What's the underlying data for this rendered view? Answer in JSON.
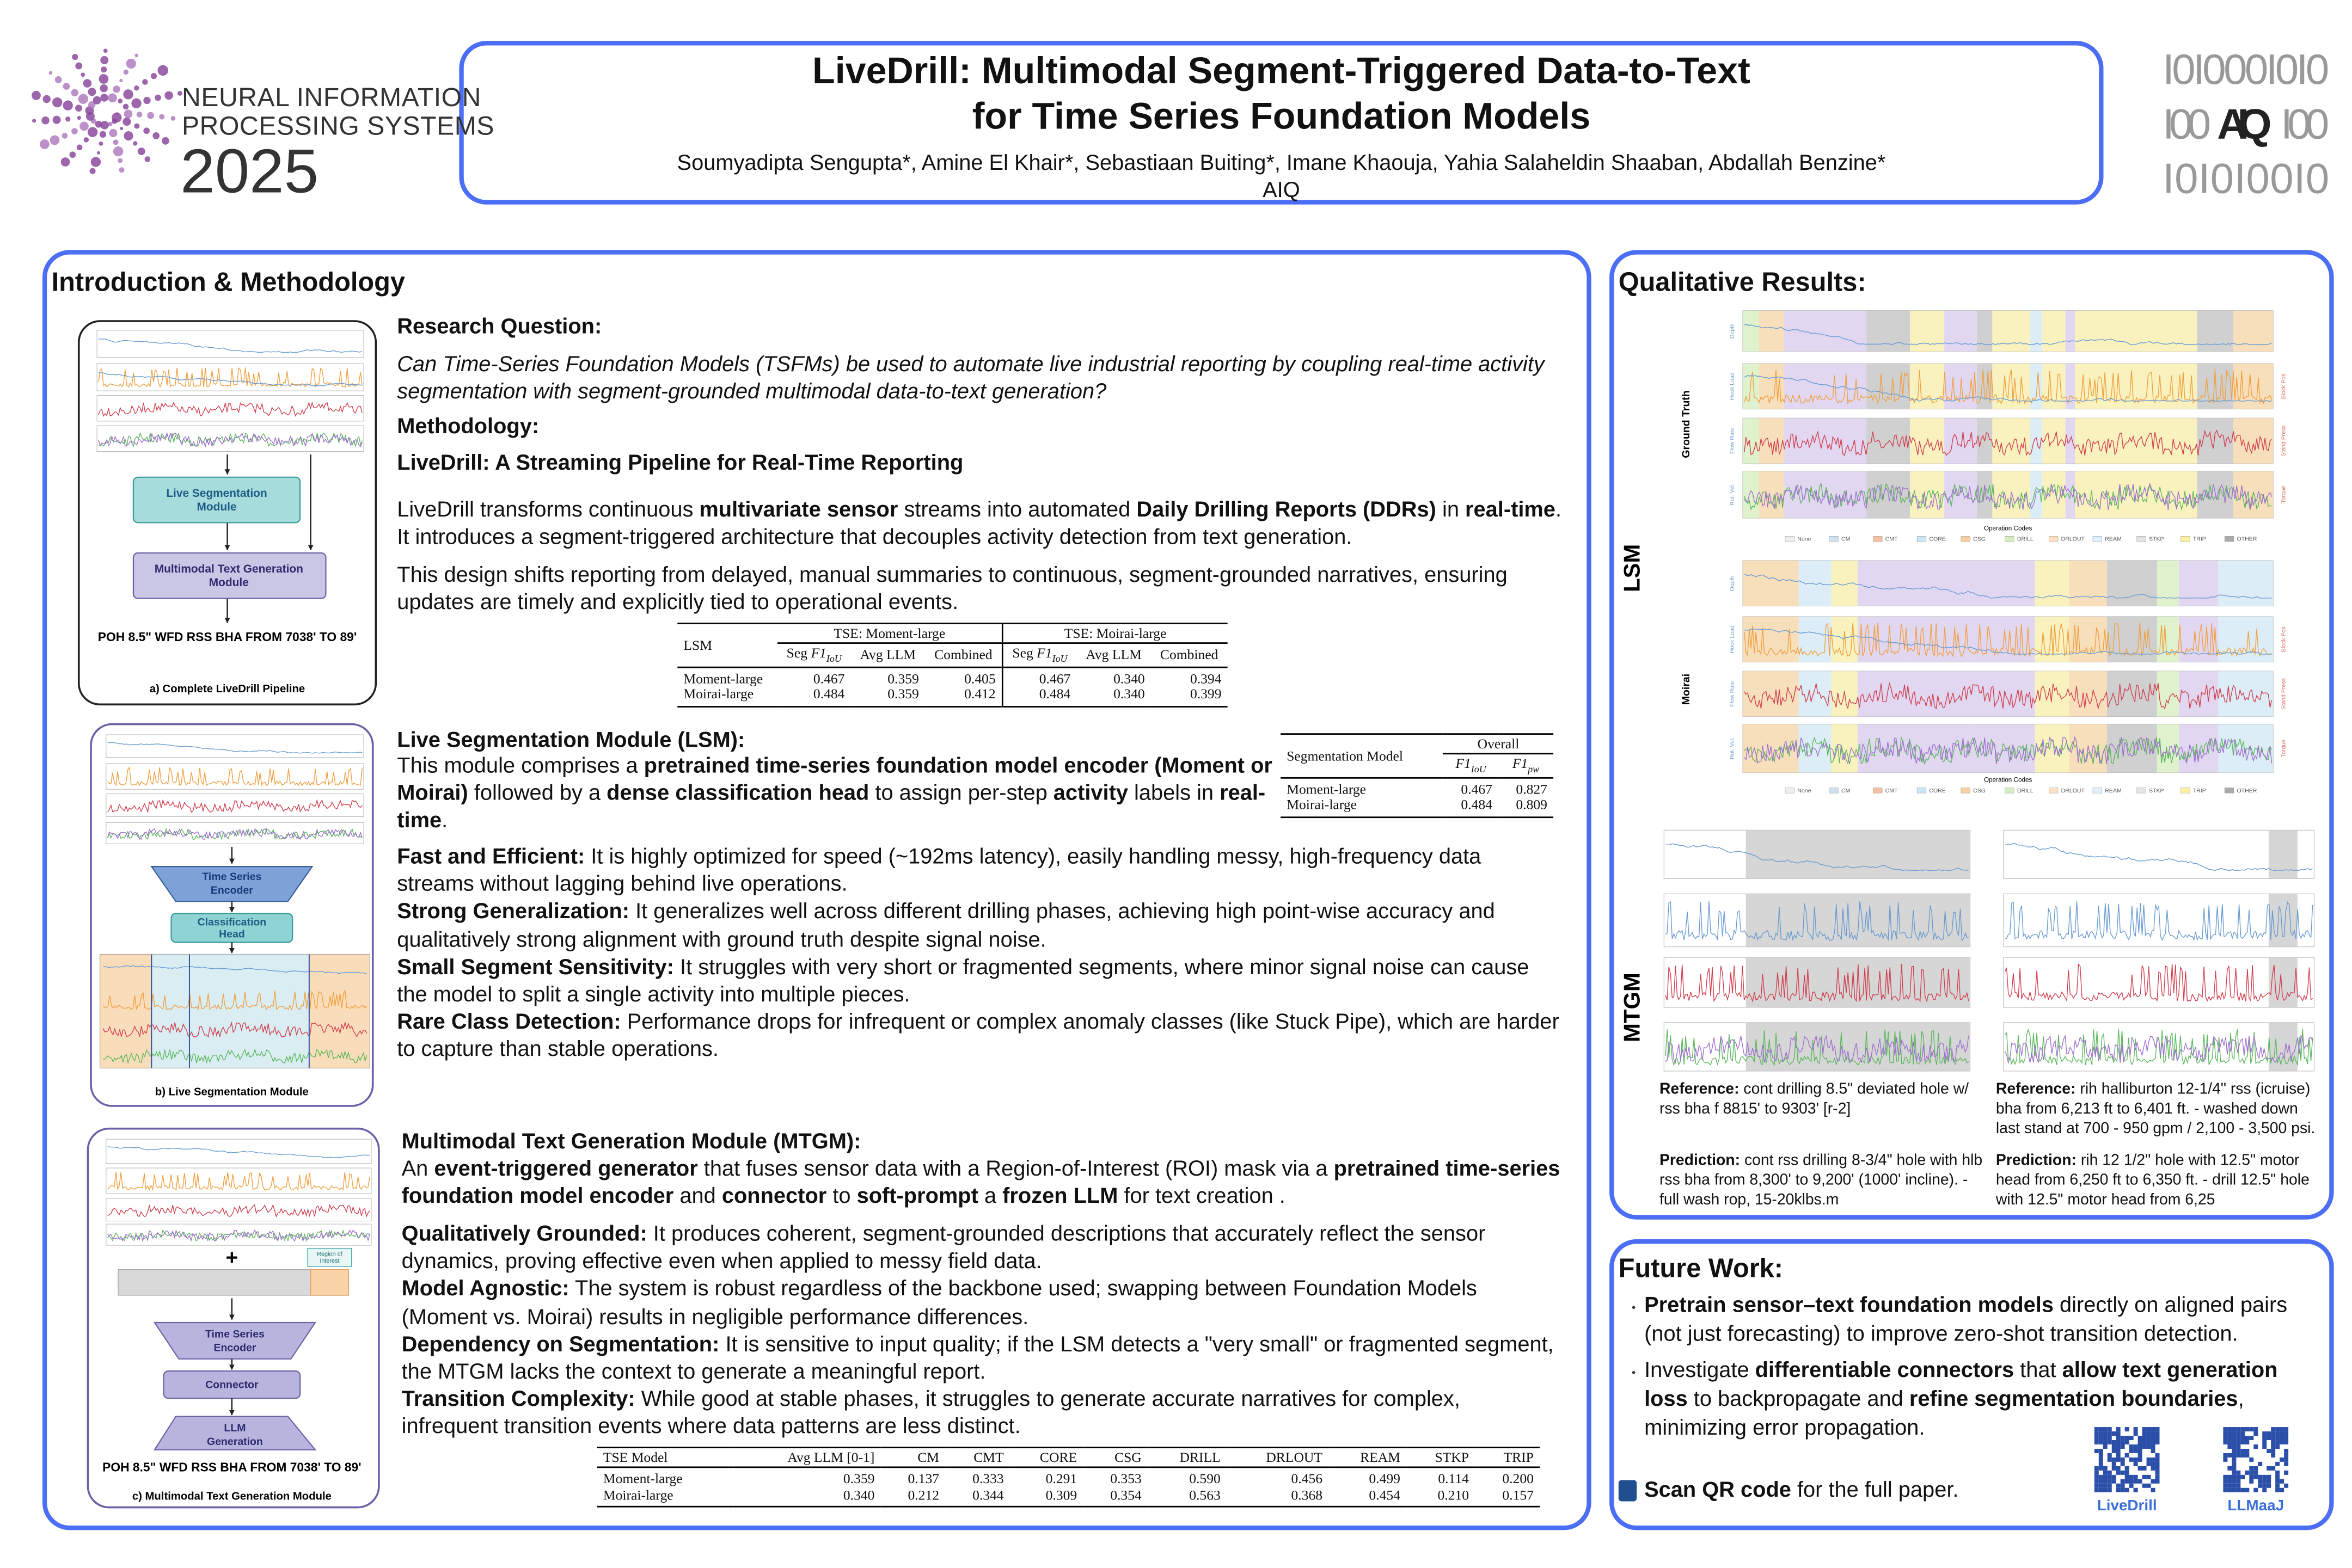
{
  "header": {
    "conference": {
      "lines": [
        "NEURAL INFORMATION",
        "PROCESSING SYSTEMS"
      ],
      "year": "2025"
    },
    "title": [
      "LiveDrill: Multimodal Segment-Triggered Data-to-Text",
      "for Time Series Foundation Models"
    ],
    "authors": "Soumyadipta Sengupta*, Amine El Khair*, Sebastiaan Buiting*, Imane Khaouja, Yahia Salaheldin Shaaban, Abdallah Benzine*",
    "affiliation": "AIQ",
    "logo": {
      "top": "I0I000I0I0",
      "left": "I00",
      "center": "AIQ",
      "right": "I00",
      "bottom": "I0I0I00I0"
    }
  },
  "introduction": {
    "heading": "Introduction & Methodology",
    "research_question": {
      "label": "Research Question:",
      "text": "Can Time-Series Foundation Models (TSFMs) be used to automate live industrial reporting by coupling real-time activity segmentation with segment-grounded multimodal data-to-text generation?"
    },
    "methodology": {
      "label": "Methodology:",
      "subtitle": "LiveDrill: A Streaming Pipeline for Real-Time Reporting",
      "paragraphs": [
        [
          "LiveDrill transforms continuous ",
          {
            "b": "multivariate sensor"
          },
          " streams into automated ",
          {
            "b": "Daily Drilling Reports (DDRs)"
          },
          " in ",
          {
            "b": "real-time"
          },
          ". It introduces a segment-triggered architecture that decouples activity detection from text generation."
        ],
        "This design shifts reporting from delayed, manual summaries to continuous, segment-grounded narratives, ensuring updates are timely and explicitly tied to operational events."
      ]
    },
    "figure_a": {
      "modules": [
        [
          "Live Segmentation",
          "Module"
        ],
        [
          "Multimodal Text Generation",
          "Module"
        ]
      ],
      "output": "POH 8.5\" WFD RSS BHA FROM 7038' TO 89'",
      "caption": "a) Complete LiveDrill Pipeline"
    },
    "table_1": {
      "groups": [
        "LSM",
        "TSE: Moment-large",
        "TSE: Moirai-large"
      ],
      "columns": [
        [
          "Seg ",
          {
            "i": "F1"
          },
          {
            "sub": "IoU"
          }
        ],
        "Avg LLM",
        "Combined",
        [
          "Seg ",
          {
            "i": "F1"
          },
          {
            "sub": "IoU"
          }
        ],
        "Avg LLM",
        "Combined"
      ],
      "rows": [
        [
          "Moment-large",
          "0.467",
          "0.359",
          "0.405",
          "0.467",
          "0.340",
          "0.394"
        ],
        [
          "Moirai-large",
          "0.484",
          "0.359",
          "0.412",
          "0.484",
          "0.340",
          "0.399"
        ]
      ]
    },
    "lsm": {
      "heading": "Live Segmentation Module (LSM):",
      "description": [
        "This module comprises a ",
        {
          "b": "pretrained time-series foundation model encoder (Moment or Moirai)"
        },
        " followed by a ",
        {
          "b": "dense classification head"
        },
        " to assign per-step ",
        {
          "b": "activity"
        },
        " labels in ",
        {
          "b": "real-time"
        },
        "."
      ],
      "points": [
        [
          {
            "b": "Fast and Efficient:"
          },
          " It is highly optimized for speed (~192ms latency), easily handling messy, high-frequency data streams without lagging behind live operations."
        ],
        [
          {
            "b": "Strong Generalization:"
          },
          " It generalizes well across different drilling phases, achieving high point-wise accuracy and qualitatively strong alignment with ground truth despite signal noise."
        ],
        [
          {
            "b": "Small Segment Sensitivity:"
          },
          " It struggles with very short or fragmented segments, where minor signal noise can cause the model to split a single activity into multiple pieces."
        ],
        [
          {
            "b": "Rare Class Detection:"
          },
          " Performance drops for infrequent or complex anomaly classes (like Stuck Pipe), which are harder to capture than stable operations."
        ]
      ],
      "figure_b": {
        "blocks": [
          [
            "Time Series",
            "Encoder"
          ],
          [
            "Classification",
            "Head"
          ]
        ],
        "caption": "b) Live Segmentation Module"
      },
      "table_2": {
        "groups": [
          "Segmentation Model",
          "Overall"
        ],
        "columns": [
          [
            {
              "i": "F1"
            },
            {
              "sub": "IoU"
            }
          ],
          [
            {
              "i": "F1"
            },
            {
              "sub": "pw"
            }
          ]
        ],
        "rows": [
          [
            "Moment-large",
            "0.467",
            "0.827"
          ],
          [
            "Moirai-large",
            "0.484",
            "0.809"
          ]
        ]
      }
    },
    "mtgm": {
      "heading": "Multimodal Text Generation Module (MTGM):",
      "description": [
        "An ",
        {
          "b": "event-triggered generator"
        },
        " that fuses sensor data with a Region-of-Interest (ROI) mask via a ",
        {
          "b": "pretrained time-series foundation model encoder"
        },
        " and ",
        {
          "b": "connector"
        },
        " to ",
        {
          "b": "soft-prompt"
        },
        " a ",
        {
          "b": "frozen LLM"
        },
        " for text creation ."
      ],
      "points": [
        [
          {
            "b": "Qualitatively Grounded:"
          },
          " It produces coherent, segment-grounded descriptions that accurately reflect the sensor dynamics, proving effective even when applied to messy field data."
        ],
        [
          {
            "b": "Model Agnostic:"
          },
          " The system is robust regardless of the backbone used; swapping between Foundation Models (Moment vs. Moirai) results in negligible performance differences."
        ],
        [
          {
            "b": "Dependency on Segmentation:"
          },
          " It is sensitive to input quality; if the LSM detects a \"very small\" or fragmented segment, the MTGM lacks the context to generate a meaningful report."
        ],
        [
          {
            "b": "Transition Complexity:"
          },
          " While good at stable phases, it struggles to generate accurate narratives for complex, infrequent transition events where data patterns are less distinct."
        ]
      ],
      "figure_c": {
        "plus": "+",
        "roi": [
          "Region of",
          "Interest"
        ],
        "blocks": [
          [
            "Time Series",
            "Encoder"
          ],
          [
            "Connector"
          ],
          [
            "LLM",
            "Generation"
          ]
        ],
        "output": "POH 8.5\" WFD RSS BHA FROM 7038' TO 89'",
        "caption": "c) Multimodal Text Generation Module"
      },
      "table_3": {
        "columns": [
          "TSE Model",
          "Avg LLM [0-1]",
          "CM",
          "CMT",
          "CORE",
          "CSG",
          "DRILL",
          "DRLOUT",
          "REAM",
          "STKP",
          "TRIP"
        ],
        "rows": [
          [
            "Moment-large",
            "0.359",
            "0.137",
            "0.333",
            "0.291",
            "0.353",
            "0.590",
            "0.456",
            "0.499",
            "0.114",
            "0.200"
          ],
          [
            "Moirai-large",
            "0.340",
            "0.212",
            "0.344",
            "0.309",
            "0.354",
            "0.563",
            "0.368",
            "0.454",
            "0.210",
            "0.157"
          ]
        ]
      }
    }
  },
  "qualitative": {
    "heading": "Qualitative Results:",
    "lsm_label": "LSM",
    "mtgm_label": "MTGM",
    "rows": [
      "Ground Truth",
      "Moirai"
    ],
    "channels_left": [
      "Depth",
      "Hook Load",
      "Flow Rate",
      "Rot. Vel."
    ],
    "channels_right": [
      "Block Pos",
      "Stand Press",
      "Torque"
    ],
    "legend_title": "Operation Codes",
    "codes": [
      "None",
      "CM",
      "CMT",
      "CORE",
      "CSG",
      "DRILL",
      "DRLOUT",
      "REAM",
      "STKP",
      "TRIP",
      "OTHER"
    ],
    "examples": [
      {
        "reference": [
          {
            "b": "Reference:"
          },
          " cont drilling 8.5\" deviated hole w/ rss bha f 8815' to 9303' [r-2]"
        ],
        "prediction": [
          {
            "b": "Prediction:"
          },
          " cont rss drilling 8-3/4\" hole with hlb rss bha from 8,300' to 9,200' (1000' incline). - full wash rop, 15-20klbs.m"
        ]
      },
      {
        "reference": [
          {
            "b": "Reference:"
          },
          " rih halliburton 12-1/4\" rss (icruise) bha from 6,213 ft to 6,401 ft. - washed down last stand at 700 - 950 gpm / 2,100 - 3,500 psi."
        ],
        "prediction": [
          {
            "b": "Prediction:"
          },
          " rih 12 1/2\" hole with 12.5\" motor head from 6,250 ft to 6,350 ft. - drill 12.5\" hole with 12.5\" motor head from 6,25"
        ]
      }
    ]
  },
  "future_work": {
    "heading": "Future Work:",
    "items": [
      [
        {
          "b": "Pretrain sensor–text foundation models"
        },
        " directly on aligned pairs (not just forecasting) to improve zero-shot transition detection."
      ],
      [
        "Investigate ",
        {
          "b": "differentiable connectors"
        },
        " that ",
        {
          "b": "allow text generation loss"
        },
        " to backpropagate and ",
        {
          "b": "refine segmentation boundaries"
        },
        ", minimizing error propagation."
      ]
    ],
    "scan": [
      {
        "b": "Scan QR code"
      },
      " for the full paper."
    ],
    "qr_labels": [
      "LiveDrill",
      "LLMaaJ"
    ]
  }
}
